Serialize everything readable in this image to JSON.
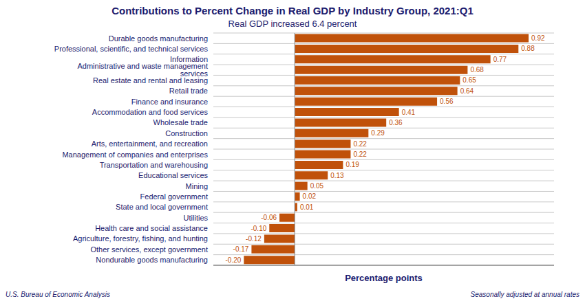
{
  "chart_data": {
    "type": "bar",
    "orientation": "horizontal",
    "title": "Contributions to Percent Change in Real GDP by Industry Group, 2021:Q1",
    "subtitle": "Real GDP increased 6.4 percent",
    "x_label": "Percentage points",
    "annotations": [
      "U.S. Bureau of Economic Analysis",
      "Seasonally adjusted at annual rates"
    ],
    "categories": [
      "Durable goods manufacturing",
      "Professional, scientific, and technical services",
      "Information",
      "Administrative and waste management services",
      "Real estate and rental and leasing",
      "Retail trade",
      "Finance and insurance",
      "Accommodation and food services",
      "Wholesale trade",
      "Construction",
      "Arts, entertainment, and recreation",
      "Management of companies and enterprises",
      "Transportation and warehousing",
      "Educational services",
      "Mining",
      "Federal government",
      "State and local government",
      "Utilities",
      "Health care and social assistance",
      "Agriculture, forestry, fishing, and hunting",
      "Other services, except government",
      "Nondurable goods manufacturing"
    ],
    "values": [
      0.92,
      0.88,
      0.77,
      0.68,
      0.65,
      0.64,
      0.56,
      0.41,
      0.36,
      0.29,
      0.22,
      0.22,
      0.19,
      0.13,
      0.05,
      0.02,
      0.01,
      -0.06,
      -0.1,
      -0.12,
      -0.17,
      -0.2
    ],
    "value_labels": [
      "0.92",
      "0.88",
      "0.77",
      "0.68",
      "0.65",
      "0.64",
      "0.56",
      "0.41",
      "0.36",
      "0.29",
      "0.22",
      "0.22",
      "0.19",
      "0.13",
      "0.05",
      "0.02",
      "0.01",
      "-0.06",
      "-0.10",
      "-0.12",
      "-0.17",
      "-0.20"
    ],
    "color": "#C0510A",
    "xlim": [
      -0.32,
      1.02
    ],
    "data_labels": true,
    "tick_labels": "y",
    "grid": true
  }
}
